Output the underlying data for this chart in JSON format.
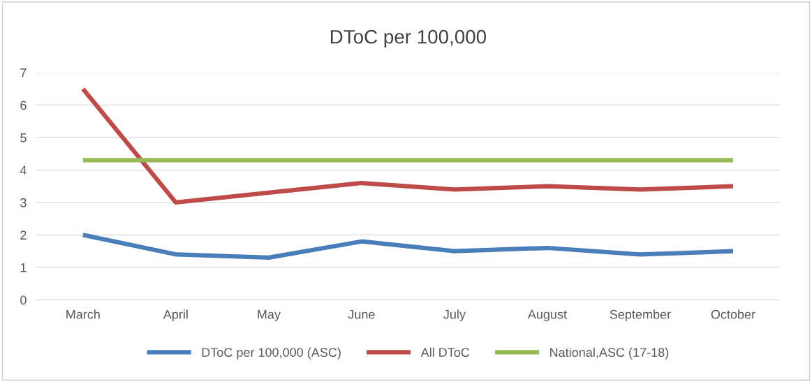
{
  "chart_data": {
    "type": "line",
    "title": "DToC per 100,000",
    "categories": [
      "March",
      "April",
      "May",
      "June",
      "July",
      "August",
      "September",
      "October"
    ],
    "series": [
      {
        "name": "DToC per 100,000 (ASC)",
        "color": "#4a7ebb",
        "values": [
          2.0,
          1.4,
          1.3,
          1.8,
          1.5,
          1.6,
          1.4,
          1.5
        ]
      },
      {
        "name": "All DToC",
        "color": "#be4b48",
        "values": [
          6.5,
          3.0,
          3.3,
          3.6,
          3.4,
          3.5,
          3.4,
          3.5
        ]
      },
      {
        "name": "National,ASC (17-18)",
        "color": "#98b954",
        "values": [
          4.3,
          4.3,
          4.3,
          4.3,
          4.3,
          4.3,
          4.3,
          4.3
        ]
      }
    ],
    "ylim": [
      0,
      7
    ],
    "yticks": [
      0,
      1,
      2,
      3,
      4,
      5,
      6,
      7
    ],
    "grid": "y",
    "legend": "bottom",
    "marker": "none",
    "line_style": "solid"
  }
}
